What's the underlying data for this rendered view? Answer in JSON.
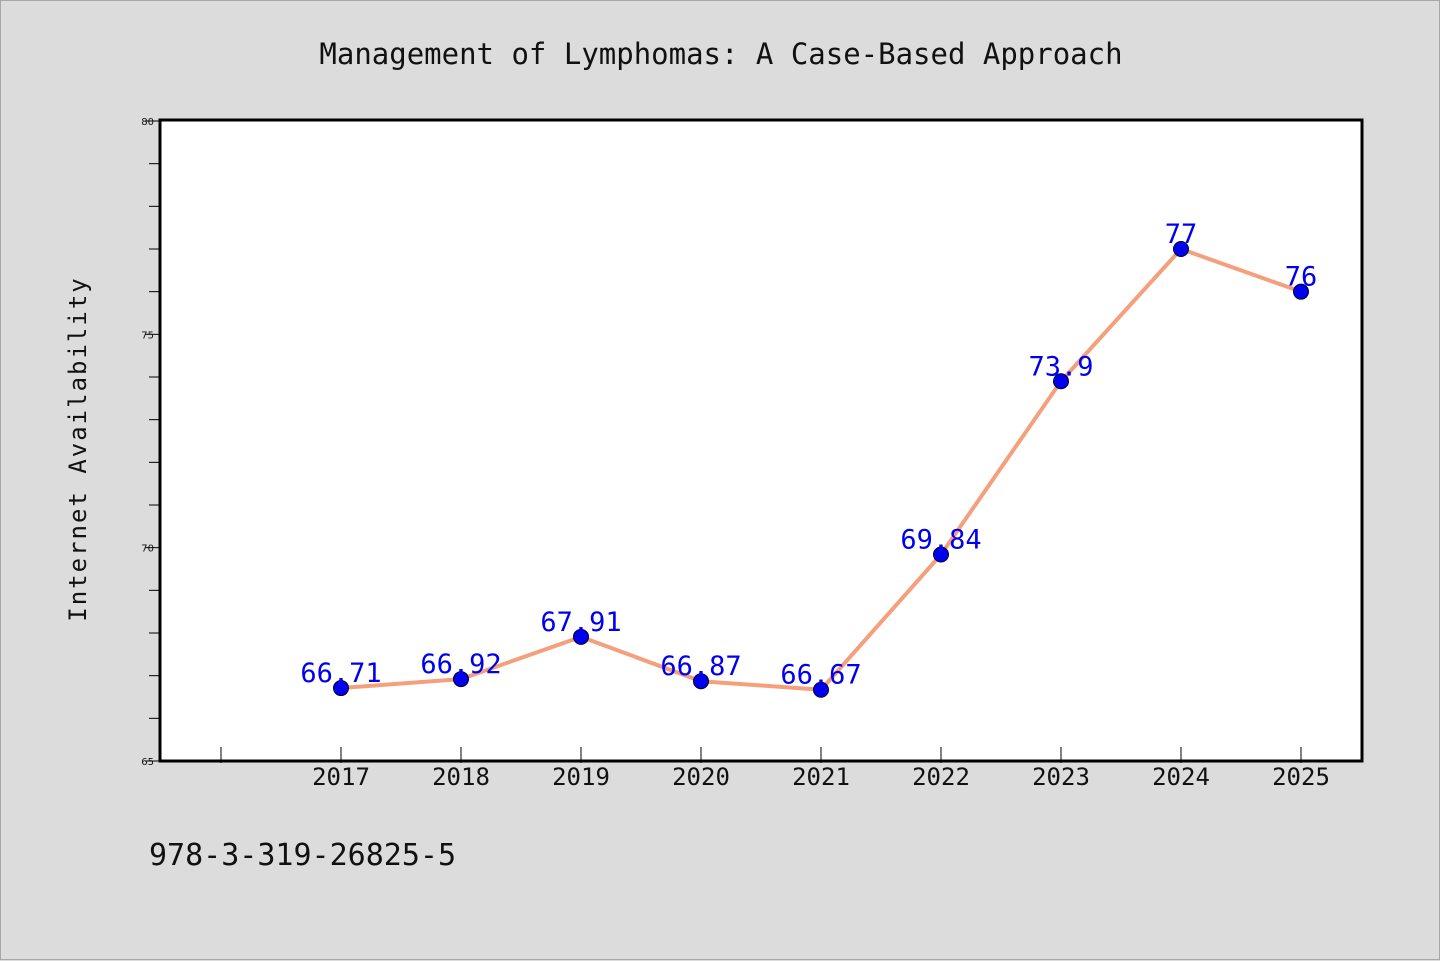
{
  "chart_data": {
    "type": "line",
    "title": "Management of Lymphomas: A Case-Based Approach",
    "ylabel": "Internet Availability",
    "xlabel": "",
    "footer_text": "978-3-319-26825-5",
    "categories": [
      "2017",
      "2018",
      "2019",
      "2020",
      "2021",
      "2022",
      "2023",
      "2024",
      "2025"
    ],
    "series": [
      {
        "values": [
          66.71,
          66.92,
          67.91,
          66.87,
          66.67,
          69.84,
          73.9,
          77,
          76
        ],
        "labels": [
          "66.71",
          "66.92",
          "67.91",
          "66.87",
          "66.67",
          "69.84",
          "73.9",
          "77",
          "76"
        ]
      }
    ],
    "ylim": [
      65,
      80
    ],
    "y_ticks": [
      "65",
      "70",
      "75",
      "80"
    ],
    "grid": false,
    "line_color": "#f4a07c",
    "marker_color": "#0000ee",
    "label_color": "#0000ee",
    "background_color": "#dcdcdc",
    "plot_background": "#ffffff"
  }
}
